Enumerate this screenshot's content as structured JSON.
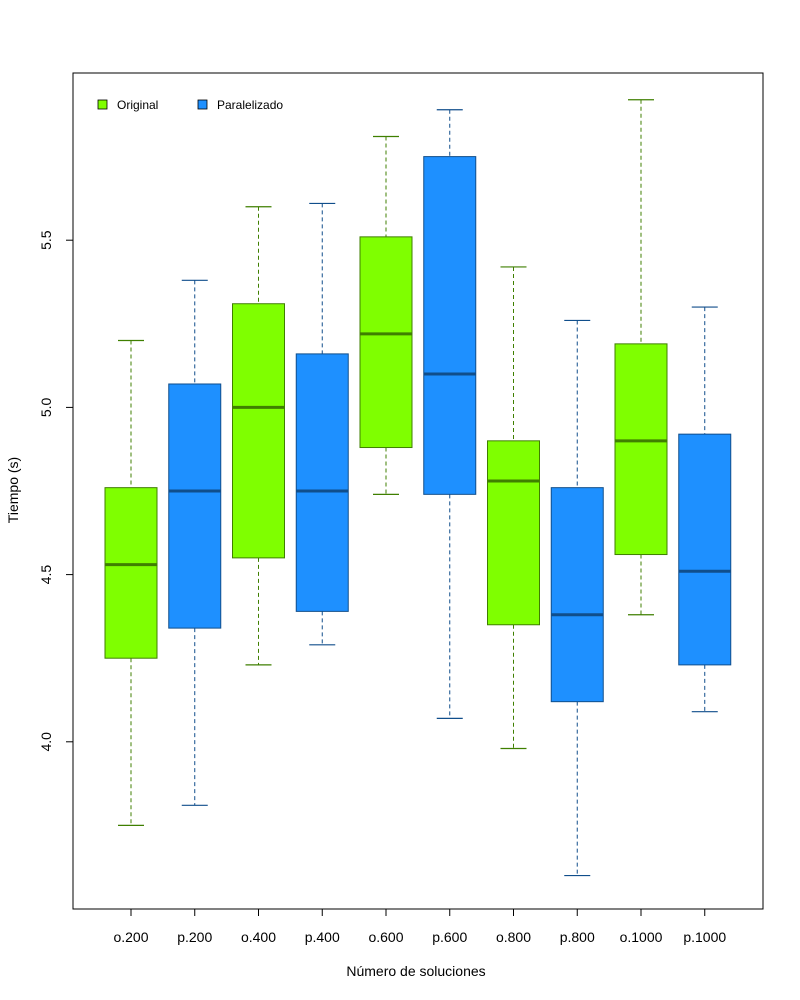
{
  "chart_data": {
    "type": "boxplot",
    "title": "",
    "xlabel": "Número de soluciones",
    "ylabel": "Tiempo (s)",
    "ylim": [
      3.5,
      6.0
    ],
    "yticks": [
      "4.0",
      "4.5",
      "5.0",
      "5.5"
    ],
    "legend": {
      "placement": "top-left",
      "entries": [
        {
          "label": "Original",
          "color": "#7fff00"
        },
        {
          "label": "Paralelizado",
          "color": "#1e90ff"
        }
      ]
    },
    "colors": {
      "original_fill": "#7fff00",
      "original_line": "#3f7f00",
      "paralelizado_fill": "#1e90ff",
      "paralelizado_line": "#104e8b"
    },
    "boxes": [
      {
        "label": "o.200",
        "group": "Original",
        "min": 3.75,
        "q1": 4.25,
        "median": 4.53,
        "q3": 4.76,
        "max": 5.2
      },
      {
        "label": "p.200",
        "group": "Paralelizado",
        "min": 3.81,
        "q1": 4.34,
        "median": 4.75,
        "q3": 5.07,
        "max": 5.38
      },
      {
        "label": "o.400",
        "group": "Original",
        "min": 4.23,
        "q1": 4.55,
        "median": 5.0,
        "q3": 5.31,
        "max": 5.6
      },
      {
        "label": "p.400",
        "group": "Paralelizado",
        "min": 4.29,
        "q1": 4.39,
        "median": 4.75,
        "q3": 5.16,
        "max": 5.61
      },
      {
        "label": "o.600",
        "group": "Original",
        "min": 4.74,
        "q1": 4.88,
        "median": 5.22,
        "q3": 5.51,
        "max": 5.81
      },
      {
        "label": "p.600",
        "group": "Paralelizado",
        "min": 4.07,
        "q1": 4.74,
        "median": 5.1,
        "q3": 5.75,
        "max": 5.89
      },
      {
        "label": "o.800",
        "group": "Original",
        "min": 3.98,
        "q1": 4.35,
        "median": 4.78,
        "q3": 4.9,
        "max": 5.42
      },
      {
        "label": "p.800",
        "group": "Paralelizado",
        "min": 3.6,
        "q1": 4.12,
        "median": 4.38,
        "q3": 4.76,
        "max": 5.26
      },
      {
        "label": "o.1000",
        "group": "Original",
        "min": 4.38,
        "q1": 4.56,
        "median": 4.9,
        "q3": 5.19,
        "max": 5.92
      },
      {
        "label": "p.1000",
        "group": "Paralelizado",
        "min": 4.09,
        "q1": 4.23,
        "median": 4.51,
        "q3": 4.92,
        "max": 5.3
      }
    ]
  }
}
